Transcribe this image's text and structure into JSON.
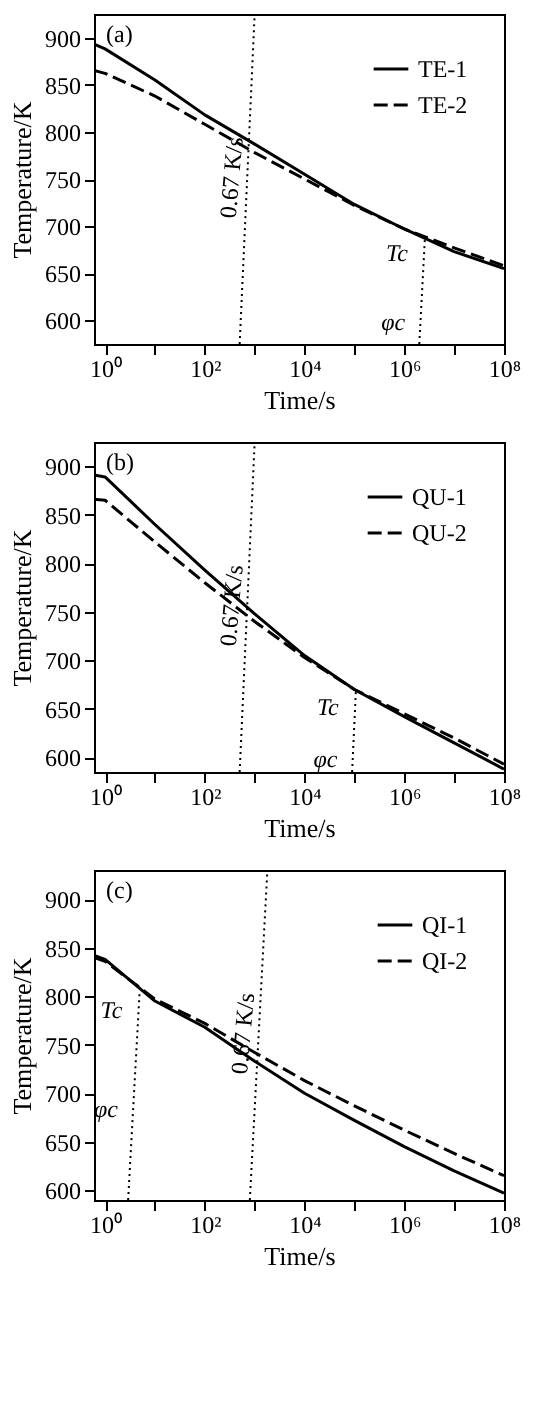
{
  "chart_data": [
    {
      "type": "line",
      "xlabel": "Time/s",
      "ylabel": "Temperature/K",
      "log": "x",
      "legend": "top right",
      "grid": false,
      "xlim": [
        0.6,
        100000000
      ],
      "ylim": [
        575,
        925
      ],
      "xticks": [
        {
          "value": 1,
          "label": "10⁰"
        },
        {
          "value": 10,
          "label": null
        },
        {
          "value": 100,
          "label": "10²"
        },
        {
          "value": 1000,
          "label": null
        },
        {
          "value": 10000,
          "label": "10⁴"
        },
        {
          "value": 100000,
          "label": null
        },
        {
          "value": 1000000,
          "label": "10⁶"
        },
        {
          "value": 10000000,
          "label": null
        },
        {
          "value": 100000000,
          "label": "10⁸"
        }
      ],
      "yticks": [
        600,
        650,
        700,
        750,
        800,
        850,
        900
      ],
      "annotations": [
        "(a)",
        {
          "text": "Tc",
          "x": 2600000,
          "y": 688
        },
        {
          "text": "φc",
          "x": 2190000,
          "y": 615
        }
      ],
      "series": [
        {
          "name": "TE-1",
          "color": "#000000",
          "line_style": "solid",
          "x": [
            0.6,
            1,
            10,
            100,
            1000,
            10000,
            100000,
            1000000,
            10000000,
            100000000
          ],
          "values": [
            893,
            888,
            855,
            818,
            787,
            755,
            723,
            697,
            673,
            655
          ]
        },
        {
          "name": "TE-2",
          "color": "#000000",
          "line_style": "dashed",
          "x": [
            0.6,
            1,
            10,
            100,
            1000,
            10000,
            100000,
            1000000,
            10000000,
            100000000
          ],
          "values": [
            865,
            862,
            838,
            808,
            778,
            750,
            722,
            697,
            677,
            658
          ]
        },
        {
          "name": "0.67 K/s",
          "color": "#000000",
          "line_style": "dotted",
          "x": [
            500,
            1000
          ],
          "values": [
            575,
            925
          ]
        },
        {
          "color": "#000000",
          "line_style": "dotted",
          "x": [
            2000000,
            2600000
          ],
          "values": [
            575,
            688
          ]
        }
      ]
    },
    {
      "type": "line",
      "xlabel": "Time/s",
      "ylabel": "Temperature/K",
      "log": "x",
      "legend": "top right",
      "grid": false,
      "xlim": [
        0.6,
        100000000
      ],
      "ylim": [
        585,
        925
      ],
      "xticks": [
        {
          "value": 1,
          "label": "10⁰"
        },
        {
          "value": 10,
          "label": null
        },
        {
          "value": 100,
          "label": "10²"
        },
        {
          "value": 1000,
          "label": null
        },
        {
          "value": 10000,
          "label": "10⁴"
        },
        {
          "value": 100000,
          "label": null
        },
        {
          "value": 1000000,
          "label": "10⁶"
        },
        {
          "value": 10000000,
          "label": null
        },
        {
          "value": 100000000,
          "label": "10⁸"
        }
      ],
      "yticks": [
        600,
        650,
        700,
        750,
        800,
        850,
        900
      ],
      "annotations": [
        "(b)",
        {
          "text": "Tc",
          "x": 107000,
          "y": 668
        },
        {
          "text": "φc",
          "x": 96000,
          "y": 615
        }
      ],
      "series": [
        {
          "name": "QU-1",
          "color": "#000000",
          "line_style": "solid",
          "x": [
            0.6,
            1,
            10,
            100,
            1000,
            10000,
            100000,
            1000000,
            10000000,
            100000000
          ],
          "values": [
            891,
            889,
            840,
            793,
            748,
            705,
            670,
            642,
            615,
            588
          ]
        },
        {
          "name": "QU-2",
          "color": "#000000",
          "line_style": "dashed",
          "x": [
            0.6,
            1,
            10,
            100,
            1000,
            10000,
            100000,
            1000000,
            10000000,
            100000000
          ],
          "values": [
            866,
            865,
            822,
            780,
            740,
            703,
            670,
            645,
            620,
            593
          ]
        },
        {
          "name": "0.67 K/s",
          "color": "#000000",
          "line_style": "dotted",
          "x": [
            500,
            1000
          ],
          "values": [
            585,
            925
          ]
        },
        {
          "color": "#000000",
          "line_style": "dotted",
          "x": [
            90000,
            107000
          ],
          "values": [
            585,
            668
          ]
        }
      ]
    },
    {
      "type": "line",
      "xlabel": "Time/s",
      "ylabel": "Temperature/K",
      "log": "x",
      "legend": "top right",
      "grid": false,
      "xlim": [
        0.6,
        100000000
      ],
      "ylim": [
        590,
        930
      ],
      "xticks": [
        {
          "value": 1,
          "label": "10⁰"
        },
        {
          "value": 10,
          "label": null
        },
        {
          "value": 100,
          "label": "10²"
        },
        {
          "value": 1000,
          "label": null
        },
        {
          "value": 10000,
          "label": "10⁴"
        },
        {
          "value": 100000,
          "label": null
        },
        {
          "value": 1000000,
          "label": "10⁶"
        },
        {
          "value": 10000000,
          "label": null
        },
        {
          "value": 100000000,
          "label": "10⁸"
        }
      ],
      "yticks": [
        600,
        650,
        700,
        750,
        800,
        850,
        900
      ],
      "annotations": [
        "(c)",
        {
          "text": "Tc",
          "x": 4.9,
          "y": 802
        },
        {
          "text": "φc",
          "x": 3.8,
          "y": 700
        }
      ],
      "series": [
        {
          "name": "QI-1",
          "color": "#000000",
          "line_style": "solid",
          "x": [
            0.6,
            1,
            10,
            100,
            1000,
            10000,
            100000,
            1000000,
            10000000,
            100000000
          ],
          "values": [
            842,
            838,
            795,
            768,
            733,
            700,
            672,
            645,
            620,
            597
          ]
        },
        {
          "name": "QI-2",
          "color": "#000000",
          "line_style": "dashed",
          "x": [
            0.6,
            1,
            10,
            100,
            1000,
            10000,
            100000,
            1000000,
            10000000,
            100000000
          ],
          "values": [
            840,
            836,
            797,
            772,
            742,
            713,
            687,
            662,
            638,
            615
          ]
        },
        {
          "name": "0.67 K/s",
          "color": "#000000",
          "line_style": "dotted",
          "x": [
            800,
            1800
          ],
          "values": [
            590,
            930
          ]
        },
        {
          "color": "#000000",
          "line_style": "dotted",
          "x": [
            2.9,
            4.9
          ],
          "values": [
            590,
            802
          ]
        }
      ]
    }
  ]
}
